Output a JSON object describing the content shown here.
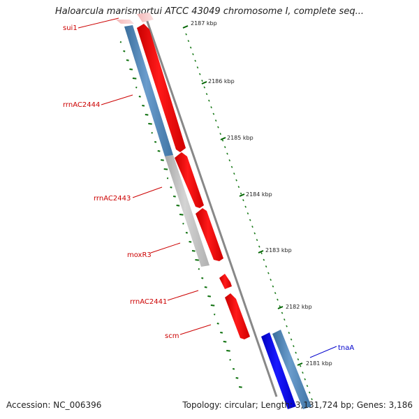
{
  "title": "Haloarcula marismortui ATCC 43049 chromosome I, complete seq...",
  "footer": {
    "accession": "Accession: NC_006396",
    "summary": "Topology: circular; Length: 3,131,724 bp; Genes: 3,186"
  },
  "ruler": {
    "ticks": [
      "2187 kbp",
      "2186 kbp",
      "2185 kbp",
      "2184 kbp",
      "2183 kbp",
      "2182 kbp",
      "2181 kbp"
    ]
  },
  "genes": [
    {
      "id": "sui1",
      "label": "sui1",
      "color": "#cc0000"
    },
    {
      "id": "rrnAC2444",
      "label": "rrnAC2444",
      "color": "#cc0000"
    },
    {
      "id": "rrnAC2443",
      "label": "rrnAC2443",
      "color": "#cc0000"
    },
    {
      "id": "moxR3",
      "label": "moxR3",
      "color": "#cc0000"
    },
    {
      "id": "rrnAC2441",
      "label": "rrnAC2441",
      "color": "#cc0000"
    },
    {
      "id": "scm",
      "label": "scm",
      "color": "#cc0000"
    },
    {
      "id": "tnaA",
      "label": "tnaA",
      "color": "#0000cc"
    }
  ],
  "colors": {
    "forward_cds": "#ff0000",
    "reverse_cds": "#0000ff",
    "cog_blue": "#4682b4",
    "cog_gray": "#bebebe",
    "backbone": "#808080",
    "gc_ticks": "#006400"
  }
}
